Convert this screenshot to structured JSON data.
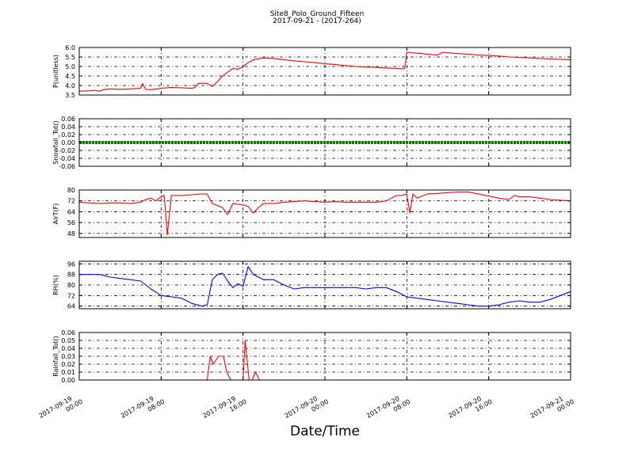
{
  "title": "Site8_Polo_Ground_Fifteen",
  "subtitle": "2017-09-21 - (2017-264)",
  "xlabel": "Date/Time",
  "x_ticks": [
    {
      "value": 0,
      "line1": "2017-09-19",
      "line2": "00:00"
    },
    {
      "value": 8,
      "line1": "2017-09-19",
      "line2": "08:00"
    },
    {
      "value": 16,
      "line1": "2017-09-19",
      "line2": "16:00"
    },
    {
      "value": 24,
      "line1": "2017-09-20",
      "line2": "00:00"
    },
    {
      "value": 32,
      "line1": "2017-09-20",
      "line2": "08:00"
    },
    {
      "value": 40,
      "line1": "2017-09-20",
      "line2": "16:00"
    },
    {
      "value": 48,
      "line1": "2017-09-21",
      "line2": "00:00"
    }
  ],
  "chart_data": [
    {
      "type": "line",
      "ylabel": "P(unitless)",
      "color": "#ff0000",
      "ylim": [
        3.5,
        6.0
      ],
      "yticks": [
        3.5,
        4.0,
        4.5,
        5.0,
        5.5,
        6.0
      ],
      "ytick_labels": [
        "3.5",
        "4.0",
        "4.5",
        "5.0",
        "5.5",
        "6.0"
      ],
      "grid": true,
      "series": [
        {
          "x": [
            0,
            1,
            1.5,
            2,
            2.5,
            3,
            4,
            5,
            6,
            6.2,
            6.5,
            7,
            7.5,
            8,
            9,
            10,
            11,
            11.3,
            11.6,
            12,
            12.5,
            13,
            13.5,
            14,
            14.5,
            15,
            15.5,
            16,
            16.5,
            17,
            18,
            19,
            20,
            21,
            22,
            23,
            24,
            25,
            26,
            27,
            28,
            29,
            30,
            31,
            31.5,
            31.8,
            32,
            32.5,
            33,
            34,
            35,
            35.5,
            36,
            37,
            38,
            39,
            40,
            41,
            42,
            43,
            44,
            45,
            46,
            47,
            48
          ],
          "y": [
            3.7,
            3.72,
            3.75,
            3.7,
            3.8,
            3.82,
            3.8,
            3.82,
            3.85,
            4.1,
            3.8,
            3.78,
            3.82,
            3.85,
            3.9,
            3.88,
            3.85,
            3.9,
            4.1,
            4.12,
            4.1,
            3.95,
            4.2,
            4.5,
            4.7,
            4.9,
            4.85,
            5.0,
            5.2,
            5.35,
            5.45,
            5.42,
            5.35,
            5.3,
            5.25,
            5.2,
            5.15,
            5.1,
            5.05,
            5.0,
            4.97,
            4.95,
            4.92,
            4.9,
            4.88,
            4.9,
            5.75,
            5.72,
            5.7,
            5.65,
            5.6,
            5.75,
            5.72,
            5.68,
            5.65,
            5.6,
            5.58,
            5.55,
            5.5,
            5.48,
            5.45,
            5.42,
            5.4,
            5.38,
            5.35
          ]
        }
      ]
    },
    {
      "type": "line",
      "ylabel": "Snowfall_Tot()",
      "color": "#008000",
      "ylim": [
        -0.06,
        0.06
      ],
      "yticks": [
        -0.06,
        -0.04,
        -0.02,
        0.0,
        0.02,
        0.04,
        0.06
      ],
      "ytick_labels": [
        "-0.06",
        "-0.04",
        "-0.02",
        "0.00",
        "0.02",
        "0.04",
        "0.06"
      ],
      "grid": true,
      "series": [
        {
          "x": [
            0,
            48
          ],
          "y": [
            0,
            0
          ]
        }
      ]
    },
    {
      "type": "line",
      "ylabel": "AirT(F)",
      "color": "#ff0000",
      "ylim": [
        45,
        80
      ],
      "yticks": [
        48,
        56,
        64,
        72,
        80
      ],
      "ytick_labels": [
        "48",
        "56",
        "64",
        "72",
        "80"
      ],
      "grid": true,
      "series": [
        {
          "x": [
            0,
            1,
            2,
            3,
            4,
            5,
            6,
            6.5,
            7,
            7.5,
            8,
            8.3,
            8.6,
            9,
            10,
            11,
            12,
            12.5,
            13,
            14,
            14.5,
            15,
            16,
            16.5,
            17,
            17.5,
            18,
            19,
            20,
            21,
            22,
            23,
            24,
            25,
            26,
            27,
            28,
            29,
            30,
            31,
            31.5,
            32,
            32.3,
            32.6,
            33,
            34,
            35,
            36,
            37,
            38,
            39,
            40,
            41,
            42,
            42.5,
            43,
            44,
            45,
            46,
            47,
            48
          ],
          "y": [
            71,
            70.5,
            70,
            70.5,
            70.5,
            70,
            71,
            73,
            74,
            72,
            75,
            76,
            47,
            76,
            76,
            76.5,
            77,
            77,
            70,
            67,
            62,
            70,
            69,
            68,
            63,
            67,
            70,
            70,
            71,
            71.5,
            72,
            71.5,
            71,
            71.5,
            71,
            71,
            71,
            71,
            72,
            76,
            76,
            77,
            63,
            77,
            74,
            77,
            77.5,
            78,
            78.5,
            78.5,
            77,
            75.5,
            74,
            73,
            76,
            75,
            75,
            74,
            73,
            72.5,
            72
          ]
        }
      ]
    },
    {
      "type": "line",
      "ylabel": "RH(%)",
      "color": "#0000ff",
      "ylim": [
        62,
        98
      ],
      "yticks": [
        64,
        72,
        80,
        88,
        96
      ],
      "ytick_labels": [
        "64",
        "72",
        "80",
        "88",
        "96"
      ],
      "grid": true,
      "series": [
        {
          "x": [
            0,
            1,
            2,
            3,
            4,
            5,
            6,
            7,
            8,
            9,
            10,
            11,
            12,
            12.5,
            13,
            13.5,
            14,
            14.5,
            15,
            15.5,
            16,
            16.5,
            17,
            17.5,
            18,
            19,
            20,
            21,
            22,
            23,
            24,
            25,
            26,
            27,
            28,
            29,
            30,
            31,
            32,
            33,
            34,
            35,
            36,
            37,
            38,
            39,
            40,
            41,
            42,
            43,
            44,
            45,
            46,
            47,
            48
          ],
          "y": [
            88,
            88,
            88,
            86,
            85,
            84,
            83,
            77,
            72,
            71,
            70,
            66,
            64,
            65,
            84,
            88,
            89,
            83,
            78,
            81,
            79,
            94,
            88,
            86,
            84,
            84,
            80,
            77,
            78,
            78,
            78,
            78,
            78,
            78,
            77,
            78,
            78,
            75,
            71,
            70,
            69,
            68,
            67,
            66,
            65,
            64,
            64,
            65,
            67,
            68,
            67,
            67,
            69,
            72,
            75
          ]
        }
      ]
    },
    {
      "type": "line",
      "ylabel": "Rainfall_Tot()",
      "color": "#ff0000",
      "ylim": [
        0.0,
        0.06
      ],
      "yticks": [
        0.0,
        0.01,
        0.02,
        0.03,
        0.04,
        0.05,
        0.06
      ],
      "ytick_labels": [
        "0.00",
        "0.01",
        "0.02",
        "0.03",
        "0.04",
        "0.05",
        "0.06"
      ],
      "grid": true,
      "series": [
        {
          "x": [
            0,
            12.5,
            12.8,
            13.1,
            13.6,
            14.1,
            14.4,
            14.8,
            15,
            16,
            16.2,
            16.6,
            16.9,
            17.2,
            17.6,
            17.9,
            18.2,
            48
          ],
          "y": [
            0,
            0,
            0.03,
            0.02,
            0.03,
            0.03,
            0.01,
            0,
            0,
            0,
            0.05,
            0,
            0,
            0.01,
            0,
            0,
            0,
            0
          ]
        }
      ]
    }
  ]
}
